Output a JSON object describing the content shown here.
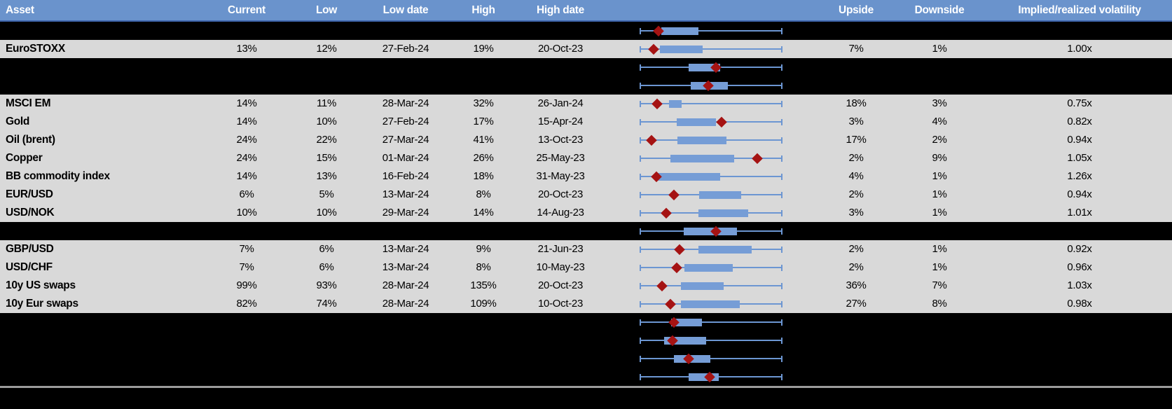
{
  "colors": {
    "header_bg": "#6A93CC",
    "header_underline": "#3F66AE",
    "header_text": "#FFFFFF",
    "row_gray": "#D9D9D9",
    "row_black": "#000000",
    "whisker_blue": "#6C96D2",
    "box_blue": "#769DD6",
    "marker_red": "#A51313",
    "separator_gray": "#9B9B9B",
    "body_text": "#000000"
  },
  "columns": [
    {
      "key": "asset",
      "label": "Asset"
    },
    {
      "key": "current",
      "label": "Current"
    },
    {
      "key": "low",
      "label": "Low"
    },
    {
      "key": "low_date",
      "label": "Low date"
    },
    {
      "key": "high",
      "label": "High"
    },
    {
      "key": "high_date",
      "label": "High date"
    },
    {
      "key": "upside",
      "label": "Upside"
    },
    {
      "key": "downside",
      "label": "Downside"
    },
    {
      "key": "ivol",
      "label": "Implied/realized volatility"
    }
  ],
  "rows": [
    {
      "kind": "chart",
      "cells": null,
      "plot": {
        "whisker_lo": 21.1,
        "whisker_hi": 95.3,
        "box_lo": 32.4,
        "box_hi": 51.6,
        "marker": 30.9
      }
    },
    {
      "kind": "data",
      "cells": {
        "asset": "EuroSTOXX",
        "current": "13%",
        "low": "12%",
        "low_date": "27-Feb-24",
        "high": "19%",
        "high_date": "20-Oct-23",
        "upside": "7%",
        "downside": "1%",
        "ivol": "1.00x"
      },
      "plot": {
        "whisker_lo": 21.1,
        "whisker_hi": 95.3,
        "box_lo": 31.6,
        "box_hi": 53.8,
        "marker": 28.4
      }
    },
    {
      "kind": "chart",
      "cells": null,
      "plot": {
        "whisker_lo": 21.1,
        "whisker_hi": 95.3,
        "box_lo": 46.5,
        "box_hi": 62.9,
        "marker": 60.7
      }
    },
    {
      "kind": "chart",
      "cells": null,
      "plot": {
        "whisker_lo": 21.1,
        "whisker_hi": 95.3,
        "box_lo": 47.6,
        "box_hi": 66.9,
        "marker": 56.7
      }
    },
    {
      "kind": "data",
      "cells": {
        "asset": "MSCI EM",
        "current": "14%",
        "low": "11%",
        "low_date": "28-Mar-24",
        "high": "32%",
        "high_date": "26-Jan-24",
        "upside": "18%",
        "downside": "3%",
        "ivol": "0.75x"
      },
      "plot": {
        "whisker_lo": 21.1,
        "whisker_hi": 95.3,
        "box_lo": 36.4,
        "box_hi": 42.9,
        "marker": 30.2
      }
    },
    {
      "kind": "data",
      "cells": {
        "asset": "Gold",
        "current": "14%",
        "low": "10%",
        "low_date": "27-Feb-24",
        "high": "17%",
        "high_date": "15-Apr-24",
        "upside": "3%",
        "downside": "4%",
        "ivol": "0.82x"
      },
      "plot": {
        "whisker_lo": 21.1,
        "whisker_hi": 95.3,
        "box_lo": 40.4,
        "box_hi": 60.7,
        "marker": 63.6
      }
    },
    {
      "kind": "data",
      "cells": {
        "asset": "Oil (brent)",
        "current": "24%",
        "low": "22%",
        "low_date": "27-Mar-24",
        "high": "41%",
        "high_date": "13-Oct-23",
        "upside": "17%",
        "downside": "2%",
        "ivol": "0.94x"
      },
      "plot": {
        "whisker_lo": 21.1,
        "whisker_hi": 95.3,
        "box_lo": 40.7,
        "box_hi": 66.2,
        "marker": 27.3
      }
    },
    {
      "kind": "data",
      "cells": {
        "asset": "Copper",
        "current": "24%",
        "low": "15%",
        "low_date": "01-Mar-24",
        "high": "26%",
        "high_date": "25-May-23",
        "upside": "2%",
        "downside": "9%",
        "ivol": "1.05x"
      },
      "plot": {
        "whisker_lo": 21.1,
        "whisker_hi": 95.3,
        "box_lo": 37.1,
        "box_hi": 70.2,
        "marker": 82.2
      }
    },
    {
      "kind": "data",
      "cells": {
        "asset": "BB commodity index",
        "current": "14%",
        "low": "13%",
        "low_date": "16-Feb-24",
        "high": "18%",
        "high_date": "31-May-23",
        "upside": "4%",
        "downside": "1%",
        "ivol": "1.26x"
      },
      "plot": {
        "whisker_lo": 21.1,
        "whisker_hi": 95.3,
        "box_lo": 30.2,
        "box_hi": 62.9,
        "marker": 29.8
      }
    },
    {
      "kind": "data",
      "cells": {
        "asset": "EUR/USD",
        "current": "6%",
        "low": "5%",
        "low_date": "13-Mar-24",
        "high": "8%",
        "high_date": "20-Oct-23",
        "upside": "2%",
        "downside": "1%",
        "ivol": "0.94x"
      },
      "plot": {
        "whisker_lo": 21.1,
        "whisker_hi": 95.3,
        "box_lo": 52.0,
        "box_hi": 73.8,
        "marker": 38.9
      }
    },
    {
      "kind": "data",
      "cells": {
        "asset": "USD/NOK",
        "current": "10%",
        "low": "10%",
        "low_date": "29-Mar-24",
        "high": "14%",
        "high_date": "14-Aug-23",
        "upside": "3%",
        "downside": "1%",
        "ivol": "1.01x"
      },
      "plot": {
        "whisker_lo": 21.1,
        "whisker_hi": 95.3,
        "box_lo": 51.6,
        "box_hi": 77.5,
        "marker": 34.9
      }
    },
    {
      "kind": "chart",
      "cells": null,
      "plot": {
        "whisker_lo": 21.1,
        "whisker_hi": 95.3,
        "box_lo": 44.0,
        "box_hi": 71.6,
        "marker": 60.7
      }
    },
    {
      "kind": "data",
      "cells": {
        "asset": "GBP/USD",
        "current": "7%",
        "low": "6%",
        "low_date": "13-Mar-24",
        "high": "9%",
        "high_date": "21-Jun-23",
        "upside": "2%",
        "downside": "1%",
        "ivol": "0.92x"
      },
      "plot": {
        "whisker_lo": 21.1,
        "whisker_hi": 95.3,
        "box_lo": 51.6,
        "box_hi": 79.3,
        "marker": 41.8
      }
    },
    {
      "kind": "data",
      "cells": {
        "asset": "USD/CHF",
        "current": "7%",
        "low": "6%",
        "low_date": "13-Mar-24",
        "high": "8%",
        "high_date": "10-May-23",
        "upside": "2%",
        "downside": "1%",
        "ivol": "0.96x"
      },
      "plot": {
        "whisker_lo": 21.1,
        "whisker_hi": 95.3,
        "box_lo": 44.4,
        "box_hi": 69.5,
        "marker": 40.4
      }
    },
    {
      "kind": "data",
      "cells": {
        "asset": "10y US swaps",
        "current": "99%",
        "low": "93%",
        "low_date": "28-Mar-24",
        "high": "135%",
        "high_date": "20-Oct-23",
        "upside": "36%",
        "downside": "7%",
        "ivol": "1.03x"
      },
      "plot": {
        "whisker_lo": 21.1,
        "whisker_hi": 95.3,
        "box_lo": 42.5,
        "box_hi": 64.7,
        "marker": 32.7
      }
    },
    {
      "kind": "data",
      "cells": {
        "asset": "10y Eur swaps",
        "current": "82%",
        "low": "74%",
        "low_date": "28-Mar-24",
        "high": "109%",
        "high_date": "10-Oct-23",
        "upside": "27%",
        "downside": "8%",
        "ivol": "0.98x"
      },
      "plot": {
        "whisker_lo": 21.1,
        "whisker_hi": 95.3,
        "box_lo": 42.5,
        "box_hi": 73.1,
        "marker": 37.1
      }
    },
    {
      "kind": "chart",
      "cells": null,
      "plot": {
        "whisker_lo": 21.1,
        "whisker_hi": 95.3,
        "box_lo": 37.5,
        "box_hi": 53.5,
        "marker": 38.9
      }
    },
    {
      "kind": "chart",
      "cells": null,
      "plot": {
        "whisker_lo": 21.1,
        "whisker_hi": 95.3,
        "box_lo": 33.8,
        "box_hi": 55.6,
        "marker": 38.2
      }
    },
    {
      "kind": "chart",
      "cells": null,
      "plot": {
        "whisker_lo": 21.1,
        "whisker_hi": 95.3,
        "box_lo": 38.9,
        "box_hi": 57.8,
        "marker": 46.5
      }
    },
    {
      "kind": "chart",
      "cells": null,
      "plot": {
        "whisker_lo": 21.1,
        "whisker_hi": 95.3,
        "box_lo": 46.5,
        "box_hi": 62.2,
        "marker": 57.5
      }
    }
  ]
}
